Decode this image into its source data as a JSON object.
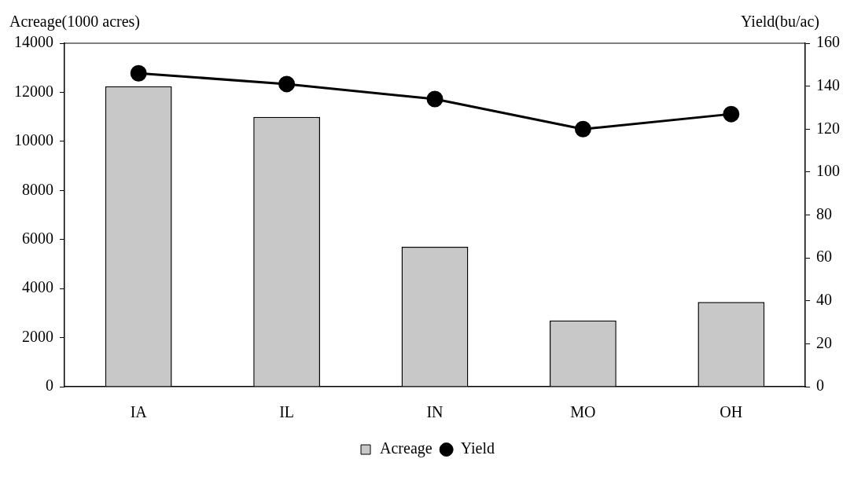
{
  "chart_data": {
    "type": "bar",
    "ylabel": "Acreage(1000 acres)",
    "y2label": "Yield(bu/ac)",
    "categories": [
      "IA",
      "IL",
      "IN",
      "MO",
      "OH"
    ],
    "series": [
      {
        "name": "Acreage",
        "color": "#c8c8c8",
        "values": [
          12250,
          11000,
          5700,
          2700,
          3450
        ]
      },
      {
        "name": "Yield",
        "type": "line",
        "axis": "y2",
        "color": "#000000",
        "values": [
          146,
          141,
          134,
          120,
          127
        ]
      }
    ],
    "ylim": [
      0,
      14000
    ],
    "yticks": [
      0,
      2000,
      4000,
      6000,
      8000,
      10000,
      12000,
      14000
    ],
    "y2lim": [
      0,
      160
    ],
    "y2ticks": [
      0,
      20,
      40,
      60,
      80,
      100,
      120,
      140,
      160
    ],
    "grid": false,
    "legend": "bottom",
    "marker": "circle",
    "line_style": "solid"
  }
}
